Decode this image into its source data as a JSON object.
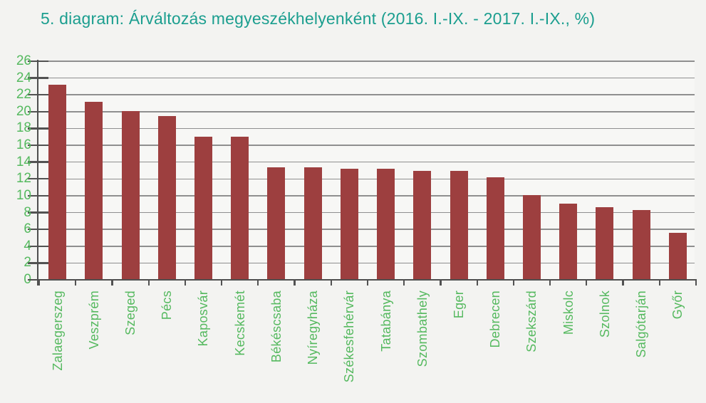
{
  "title": "5. diagram: Árváltozás megyeszékhelyenként (2016. I.-IX. - 2017. I.-IX., %)",
  "colors": {
    "background": "#f3f3f1",
    "title_text": "#1b9e8f",
    "axis_label_green": "#55b95f",
    "bar_maroon": "#9d3f3f",
    "gridline_gray": "#8f8f8f",
    "axis_dark_gray": "#4f4f4f"
  },
  "chart_data": {
    "type": "bar",
    "title": "5. diagram: Árváltozás megyeszékhelyenként (2016. I.-IX. - 2017. I.-IX., %)",
    "categories": [
      "Zalaegerszeg",
      "Veszprém",
      "Szeged",
      "Pécs",
      "Kaposvár",
      "Kecskemét",
      "Békéscsaba",
      "Nyíregyháza",
      "Székesfehérvár",
      "Tatabánya",
      "Szombathely",
      "Eger",
      "Debrecen",
      "Szekszárd",
      "Miskolc",
      "Szolnok",
      "Salgótarján",
      "Győr"
    ],
    "values": [
      23.2,
      21.2,
      20.1,
      19.5,
      17.0,
      17.0,
      13.4,
      13.4,
      13.2,
      13.2,
      13.0,
      13.0,
      12.2,
      10.1,
      9.1,
      8.6,
      8.3,
      5.6
    ],
    "xlabel": "",
    "ylabel": "",
    "unit": "%",
    "ylim": [
      0,
      26
    ],
    "ytick_step": 2,
    "yticks": [
      26,
      24,
      22,
      20,
      18,
      16,
      14,
      12,
      10,
      8,
      6,
      4,
      2,
      0
    ],
    "grid": true,
    "legend_position": "none",
    "bar_color": "#9d3f3f",
    "category_label_rotation_deg": 90
  }
}
